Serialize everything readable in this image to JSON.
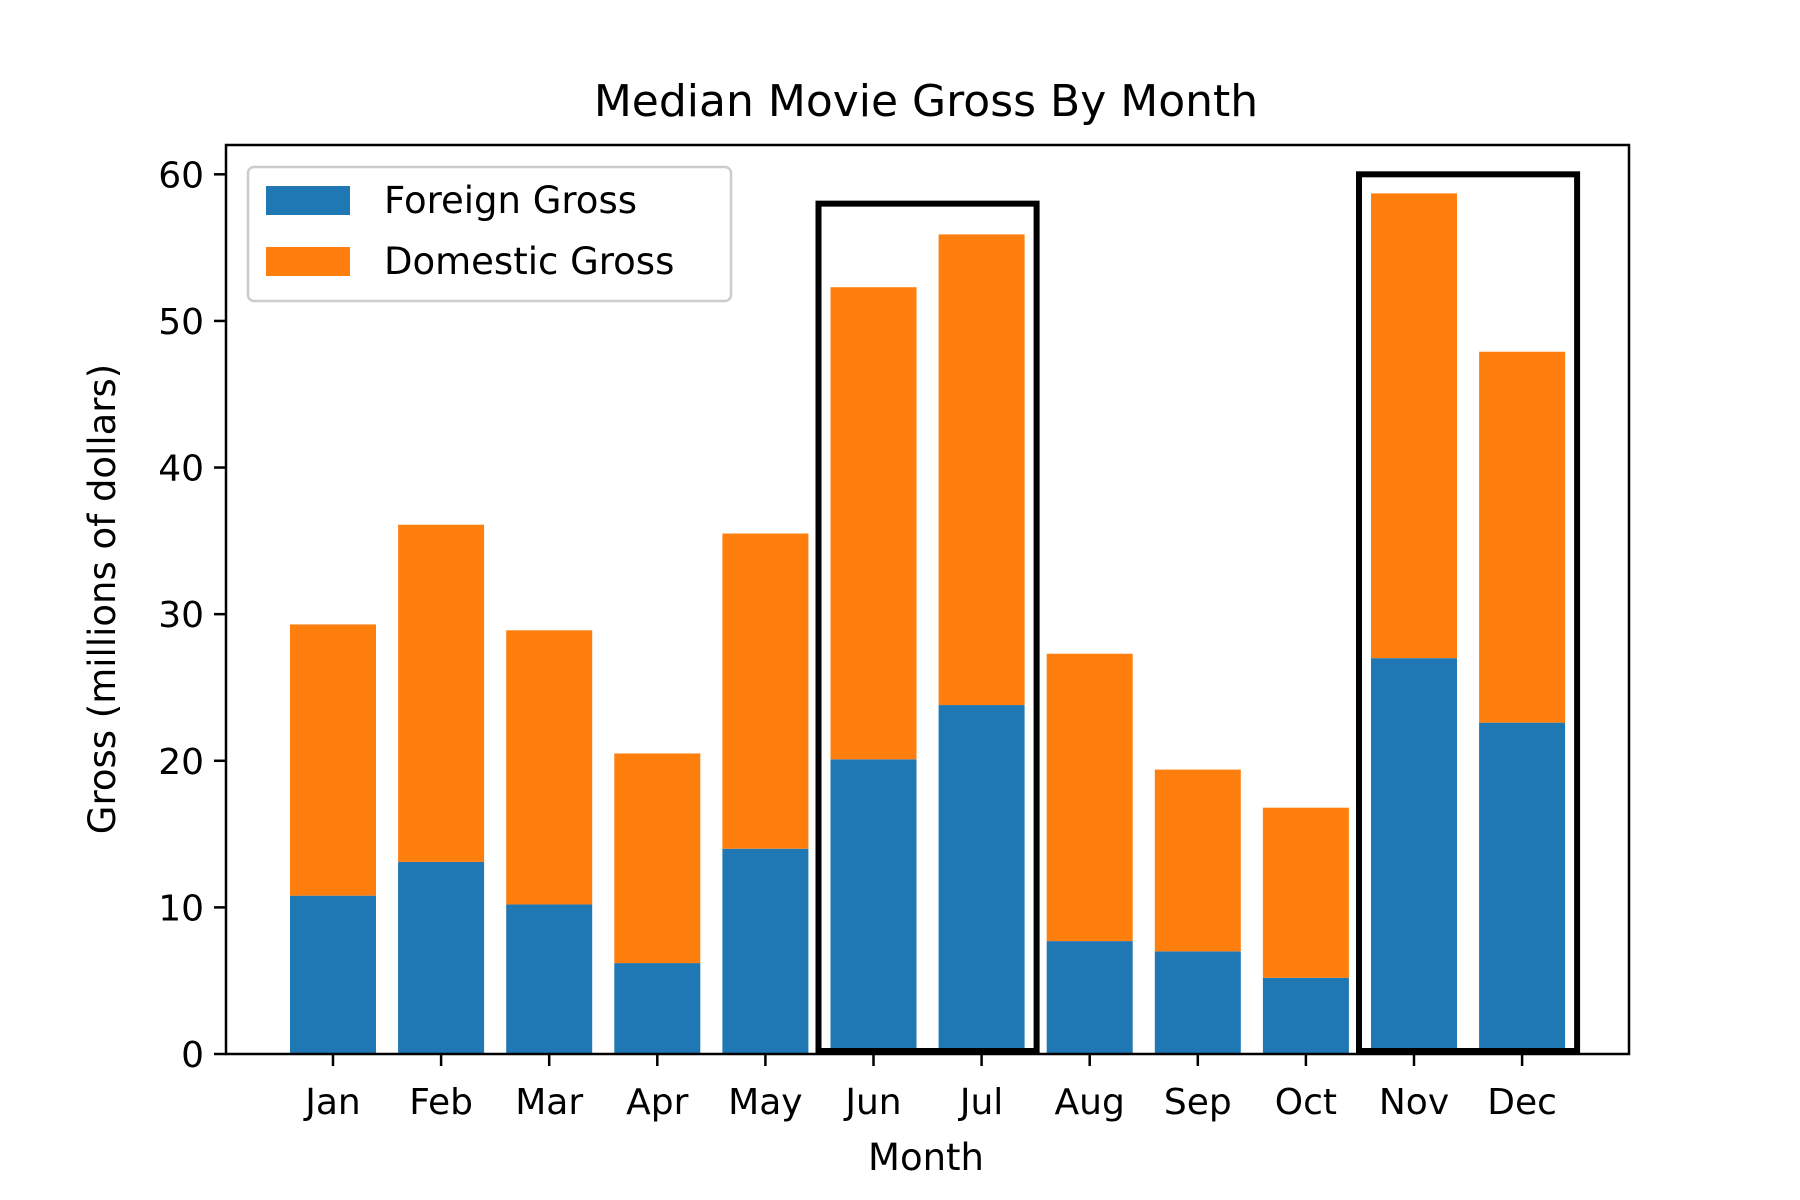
{
  "chart_data": {
    "type": "bar",
    "stacked": true,
    "title": "Median Movie Gross By Month",
    "xlabel": "Month",
    "ylabel": "Gross (millions of dollars)",
    "ylim": [
      0,
      62
    ],
    "yticks": [
      0,
      10,
      20,
      30,
      40,
      50,
      60
    ],
    "categories": [
      "Jan",
      "Feb",
      "Mar",
      "Apr",
      "May",
      "Jun",
      "Jul",
      "Aug",
      "Sep",
      "Oct",
      "Nov",
      "Dec"
    ],
    "series": [
      {
        "name": "Foreign Gross",
        "color": "#1f77b4",
        "values": [
          10.8,
          13.1,
          10.2,
          6.2,
          14.0,
          20.1,
          23.8,
          7.7,
          7.0,
          5.2,
          27.0,
          22.6
        ]
      },
      {
        "name": "Domestic Gross",
        "color": "#ff7f0e",
        "values": [
          18.5,
          23.0,
          18.7,
          14.3,
          21.5,
          32.2,
          32.1,
          19.6,
          12.4,
          11.6,
          31.7,
          25.3
        ]
      }
    ],
    "highlights": [
      {
        "from": "Jun",
        "to": "Jul",
        "top": 58.0
      },
      {
        "from": "Nov",
        "to": "Dec",
        "top": 60.0
      }
    ],
    "legend_position": "top-left",
    "grid": false
  }
}
